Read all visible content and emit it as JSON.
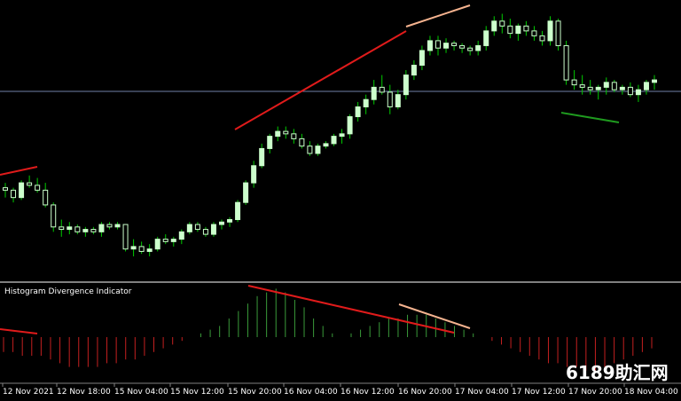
{
  "indicator": {
    "title": "Histogram Divergence Indicator"
  },
  "watermark": "6189助汇网",
  "colors": {
    "background": "#000000",
    "bull_candle": "#ccffcc",
    "bear_candle": "#ccffcc",
    "wick": "#00cc00",
    "divergence_bear": "#e01b1b",
    "divergence_bear_light": "#f5b38f",
    "divergence_bull": "#1f9b1f",
    "hist_positive": "#3a9b3a",
    "hist_negative": "#c42020",
    "price_line": "#8090b0",
    "separator": "#808080"
  },
  "chart_data": {
    "type": "candlestick",
    "x_labels": [
      "12 Nov 2021",
      "12 Nov 18:00",
      "15 Nov 04:00",
      "15 Nov 12:00",
      "15 Nov 20:00",
      "16 Nov 04:00",
      "16 Nov 12:00",
      "16 Nov 20:00",
      "17 Nov 04:00",
      "17 Nov 12:00",
      "17 Nov 20:00",
      "18 Nov 04:00"
    ],
    "price_scale": [
      100,
      0
    ],
    "candles": [
      [
        22,
        24,
        18,
        21
      ],
      [
        21,
        22,
        16,
        18
      ],
      [
        18,
        25,
        17,
        24
      ],
      [
        24,
        27,
        22,
        23
      ],
      [
        23,
        26,
        20,
        21
      ],
      [
        21,
        24,
        14,
        15
      ],
      [
        15,
        16,
        4,
        6
      ],
      [
        6,
        9,
        2,
        5
      ],
      [
        5,
        8,
        3,
        6
      ],
      [
        6,
        7,
        3,
        4
      ],
      [
        4,
        6,
        2,
        5
      ],
      [
        5,
        6,
        3,
        4
      ],
      [
        4,
        8,
        2,
        7
      ],
      [
        7,
        8,
        5,
        6
      ],
      [
        6,
        8,
        5,
        7
      ],
      [
        7,
        7,
        -4,
        -3
      ],
      [
        -3,
        1,
        -6,
        -2
      ],
      [
        -2,
        0,
        -5,
        -4
      ],
      [
        -4,
        -1,
        -6,
        -3
      ],
      [
        -3,
        2,
        -4,
        1
      ],
      [
        1,
        3,
        -1,
        0
      ],
      [
        0,
        2,
        -2,
        1
      ],
      [
        1,
        5,
        -1,
        4
      ],
      [
        4,
        8,
        3,
        7
      ],
      [
        7,
        8,
        4,
        5
      ],
      [
        5,
        6,
        2,
        3
      ],
      [
        3,
        8,
        2,
        7
      ],
      [
        7,
        9,
        5,
        8
      ],
      [
        8,
        10,
        6,
        9
      ],
      [
        9,
        17,
        8,
        16
      ],
      [
        16,
        25,
        15,
        24
      ],
      [
        24,
        33,
        22,
        31
      ],
      [
        31,
        40,
        30,
        38
      ],
      [
        38,
        44,
        36,
        43
      ],
      [
        43,
        47,
        41,
        45
      ],
      [
        45,
        47,
        42,
        44
      ],
      [
        44,
        46,
        40,
        42
      ],
      [
        42,
        44,
        38,
        39
      ],
      [
        39,
        41,
        35,
        36
      ],
      [
        36,
        40,
        35,
        39
      ],
      [
        39,
        41,
        38,
        40
      ],
      [
        40,
        44,
        39,
        43
      ],
      [
        43,
        46,
        40,
        44
      ],
      [
        44,
        52,
        42,
        51
      ],
      [
        51,
        57,
        49,
        55
      ],
      [
        55,
        60,
        52,
        58
      ],
      [
        58,
        66,
        56,
        63
      ],
      [
        63,
        68,
        60,
        61
      ],
      [
        61,
        64,
        52,
        55
      ],
      [
        55,
        62,
        54,
        60
      ],
      [
        60,
        70,
        58,
        68
      ],
      [
        68,
        74,
        66,
        72
      ],
      [
        72,
        80,
        70,
        78
      ],
      [
        78,
        84,
        76,
        82
      ],
      [
        82,
        84,
        76,
        79
      ],
      [
        79,
        83,
        77,
        81
      ],
      [
        81,
        82,
        78,
        80
      ],
      [
        80,
        81,
        77,
        79
      ],
      [
        79,
        80,
        76,
        78
      ],
      [
        78,
        82,
        76,
        80
      ],
      [
        80,
        88,
        78,
        86
      ],
      [
        86,
        92,
        84,
        90
      ],
      [
        90,
        93,
        85,
        88
      ],
      [
        88,
        91,
        83,
        85
      ],
      [
        85,
        89,
        82,
        88
      ],
      [
        88,
        90,
        84,
        86
      ],
      [
        86,
        88,
        82,
        84
      ],
      [
        84,
        86,
        80,
        82
      ],
      [
        82,
        92,
        80,
        90
      ],
      [
        90,
        91,
        78,
        80
      ],
      [
        80,
        82,
        64,
        66
      ],
      [
        66,
        70,
        62,
        64
      ],
      [
        64,
        68,
        60,
        63
      ],
      [
        63,
        66,
        60,
        62
      ],
      [
        62,
        64,
        58,
        63
      ],
      [
        63,
        67,
        60,
        65
      ],
      [
        65,
        66,
        61,
        62
      ],
      [
        62,
        64,
        60,
        63
      ],
      [
        63,
        65,
        59,
        60
      ],
      [
        60,
        64,
        57,
        62
      ],
      [
        62,
        66,
        60,
        65
      ],
      [
        65,
        68,
        62,
        66
      ]
    ],
    "histogram": [
      -4,
      -4,
      -5,
      -5,
      -5,
      -6,
      -7,
      -8,
      -8,
      -8,
      -8,
      -7,
      -7,
      -6,
      -6,
      -5,
      -4,
      -3,
      -2,
      -1,
      0,
      1,
      2,
      3,
      5,
      7,
      9,
      11,
      12,
      13,
      12,
      10,
      8,
      5,
      3,
      1,
      0,
      1,
      2,
      3,
      4,
      5,
      5,
      6,
      6,
      6,
      5,
      4,
      3,
      2,
      1,
      0,
      -1,
      -2,
      -3,
      -4,
      -5,
      -6,
      -7,
      -7,
      -8,
      -8,
      -9,
      -9,
      -8,
      -7,
      -6,
      -5,
      -4,
      -3
    ]
  }
}
